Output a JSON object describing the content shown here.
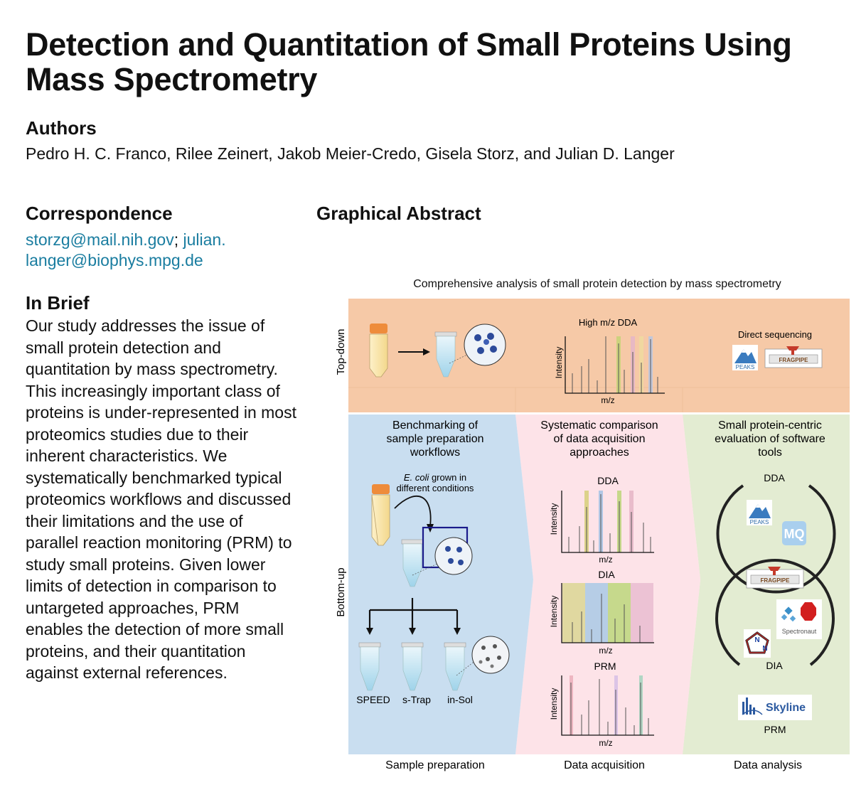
{
  "title": "Detection and Quantitation of Small Proteins Using Mass Spectrometry",
  "authors_heading": "Authors",
  "authors": "Pedro H. C. Franco, Rilee Zeinert, Jakob Meier-Credo, Gisela Storz, and Julian D. Langer",
  "correspondence_heading": "Correspondence",
  "correspondence": {
    "email1": "storzg@mail.nih.gov",
    "separator": "; ",
    "email2_part1": "julian.",
    "email2_part2": "langer@biophys.mpg.de"
  },
  "in_brief_heading": "In Brief",
  "in_brief": "Our study addresses the issue of small protein detection and quantitation by mass spectrometry. This increasingly important class of proteins is under-represented in most proteomics studies due to their inherent characteristics. We systematically benchmarked typical proteomics workflows and discussed their limitations and the use of parallel reaction monitoring (PRM) to study small proteins. Given lower limits of detection in comparison to untargeted approaches, PRM enables the detection of more small proteins, and their quantitation against external references.",
  "graphical_abstract_heading": "Graphical Abstract",
  "ga": {
    "caption": "Comprehensive analysis of small protein detection by mass spectrometry",
    "top_down_label": "Top-down",
    "bottom_up_label": "Bottom-up",
    "high_mz_dda": "High m/z DDA",
    "direct_sequencing": "Direct sequencing",
    "intensity": "Intensity",
    "mz": "m/z",
    "col1_title": [
      "Benchmarking of",
      "sample preparation",
      "workflows"
    ],
    "col2_title": [
      "Systematic comparison",
      "of data acquisition",
      "approaches"
    ],
    "col3_title": [
      "Small protein-centric",
      "evaluation of software",
      "tools"
    ],
    "ecoli_italic": "E. coli",
    "ecoli_rest": " grown in",
    "ecoli_line2": "different conditions",
    "prep_methods": [
      "SPEED",
      "s-Trap",
      "in-Sol"
    ],
    "dda": "DDA",
    "dia": "DIA",
    "prm": "PRM",
    "peaks": "PEAKS",
    "mq": "MQ",
    "fragpipe": "FRAGPIPE",
    "spectronaut": "Spectronaut",
    "skyline": "Skyline",
    "footer_labels": [
      "Sample preparation",
      "Data acquisition",
      "Data analysis"
    ]
  }
}
